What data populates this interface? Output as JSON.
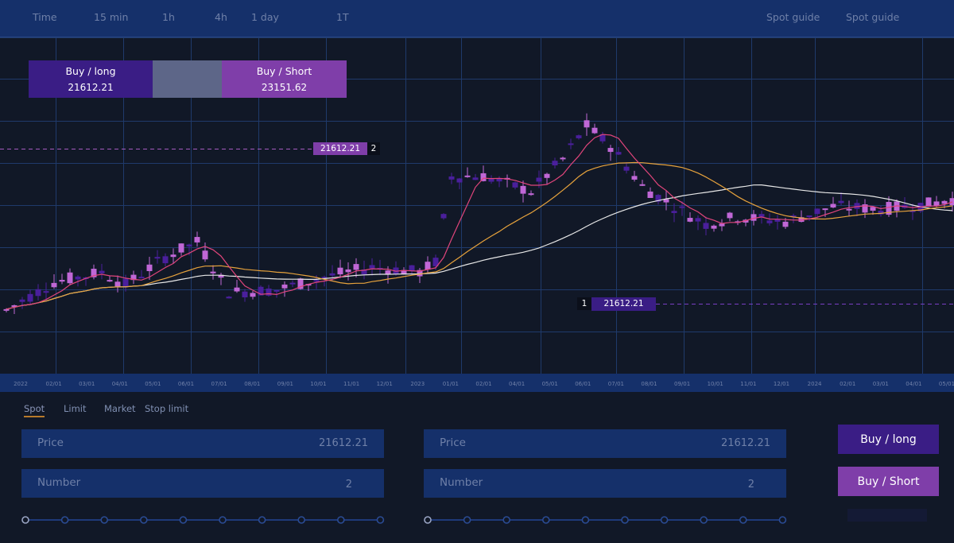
{
  "topbar": {
    "timeframes": [
      "Time",
      "15 min",
      "1h",
      "4h",
      "1 day",
      "1T"
    ],
    "guides": [
      "Spot guide",
      "Spot guide"
    ]
  },
  "order_panel": {
    "buy_label": "Buy / long",
    "buy_value": "21612.21",
    "sell_label": "Buy / Short",
    "sell_value": "23151.62"
  },
  "price_tags": {
    "upper": {
      "value": "21612.21",
      "num": "2"
    },
    "lower": {
      "value": "21612.21",
      "num": "1"
    }
  },
  "time_axis": {
    "labels": [
      "2022",
      "02/01",
      "03/01",
      "04/01",
      "05/01",
      "06/01",
      "07/01",
      "08/01",
      "09/01",
      "10/01",
      "11/01",
      "12/01",
      "2023",
      "01/01",
      "02/01",
      "04/01",
      "05/01",
      "06/01",
      "07/01",
      "08/01",
      "09/01",
      "10/01",
      "11/01",
      "12/01",
      "2024",
      "02/01",
      "03/01",
      "04/01",
      "05/01"
    ]
  },
  "order_tabs": [
    "Spot",
    "Limit",
    "Market",
    "Stop limit"
  ],
  "form_left": {
    "price_label": "Price",
    "price_value": "21612.21",
    "number_label": "Number",
    "number_value": "2"
  },
  "form_right": {
    "price_label": "Price",
    "price_value": "21612.21",
    "number_label": "Number",
    "number_value": "2"
  },
  "actions": {
    "long_label": "Buy / long",
    "short_label": "Buy / Short"
  },
  "colors": {
    "topbar": "#15306a",
    "background": "#111827",
    "grid": "#1f3a6b",
    "candle_up": "#c067d6",
    "candle_down": "#4a1f9c",
    "ma_fast": "#e0457b",
    "ma_mid": "#e6a23c",
    "ma_slow": "#e8e8e8",
    "buy": "#3a1d85",
    "sell": "#7f3ea9",
    "tab_active_underline": "#b87a2b"
  },
  "chart_data": {
    "type": "candlestick",
    "categories": [
      "2022",
      "02/01",
      "03/01",
      "04/01",
      "05/01",
      "06/01",
      "07/01",
      "08/01",
      "09/01",
      "10/01",
      "11/01",
      "12/01",
      "2023",
      "01/01",
      "02/01",
      "04/01",
      "05/01",
      "06/01",
      "07/01",
      "08/01",
      "09/01",
      "10/01",
      "11/01",
      "12/01",
      "2024",
      "02/01",
      "03/01",
      "04/01",
      "05/01"
    ],
    "series": [
      {
        "values": [
          [
            "2022",
            19500,
            20200,
            18900,
            19300
          ],
          [
            "02/01",
            20050,
            20380,
            19920,
            20140
          ],
          [
            "03/01",
            20160,
            20390,
            20030,
            20300
          ],
          [
            "04/01",
            20080,
            20240,
            19910,
            20010
          ],
          [
            "05/01",
            20410,
            20640,
            20240,
            20550
          ],
          [
            "06/01",
            20700,
            20960,
            20550,
            20810
          ],
          [
            "07/01",
            20000,
            20210,
            19540,
            19640
          ],
          [
            "08/01",
            19880,
            20060,
            19740,
            19960
          ],
          [
            "09/01",
            19890,
            20020,
            19770,
            19920
          ],
          [
            "10/01",
            20080,
            20260,
            19970,
            20170
          ],
          [
            "11/01",
            20170,
            20310,
            20050,
            20230
          ],
          [
            "12/01",
            20230,
            20390,
            20150,
            20280
          ],
          [
            "2023",
            20150,
            20560,
            19960,
            20210
          ],
          [
            "01/01",
            21000,
            22200,
            20900,
            22060
          ],
          [
            "02/01",
            22000,
            22400,
            21800,
            22140
          ],
          [
            "04/01",
            21820,
            22030,
            21610,
            21700
          ],
          [
            "05/01",
            22120,
            22590,
            21900,
            22440
          ],
          [
            "06/01",
            22750,
            23210,
            22540,
            23040
          ],
          [
            "07/01",
            22670,
            22900,
            22430,
            22510
          ],
          [
            "08/01",
            22580,
            23190,
            21450,
            21820
          ],
          [
            "09/01",
            21660,
            21900,
            21350,
            21490
          ],
          [
            "10/01",
            21380,
            21640,
            20920,
            21050
          ],
          [
            "11/01",
            21270,
            21460,
            21150,
            21350
          ],
          [
            "12/01",
            21120,
            21340,
            21000,
            21170
          ],
          [
            "2024",
            21530,
            21780,
            21340,
            21410
          ],
          [
            "02/01",
            21540,
            21670,
            21330,
            21420
          ],
          [
            "03/01",
            21480,
            21690,
            21300,
            21380
          ],
          [
            "04/01",
            21580,
            21700,
            21430,
            21510
          ],
          [
            "05/01",
            21590,
            21720,
            21440,
            21620
          ]
        ]
      }
    ]
  }
}
